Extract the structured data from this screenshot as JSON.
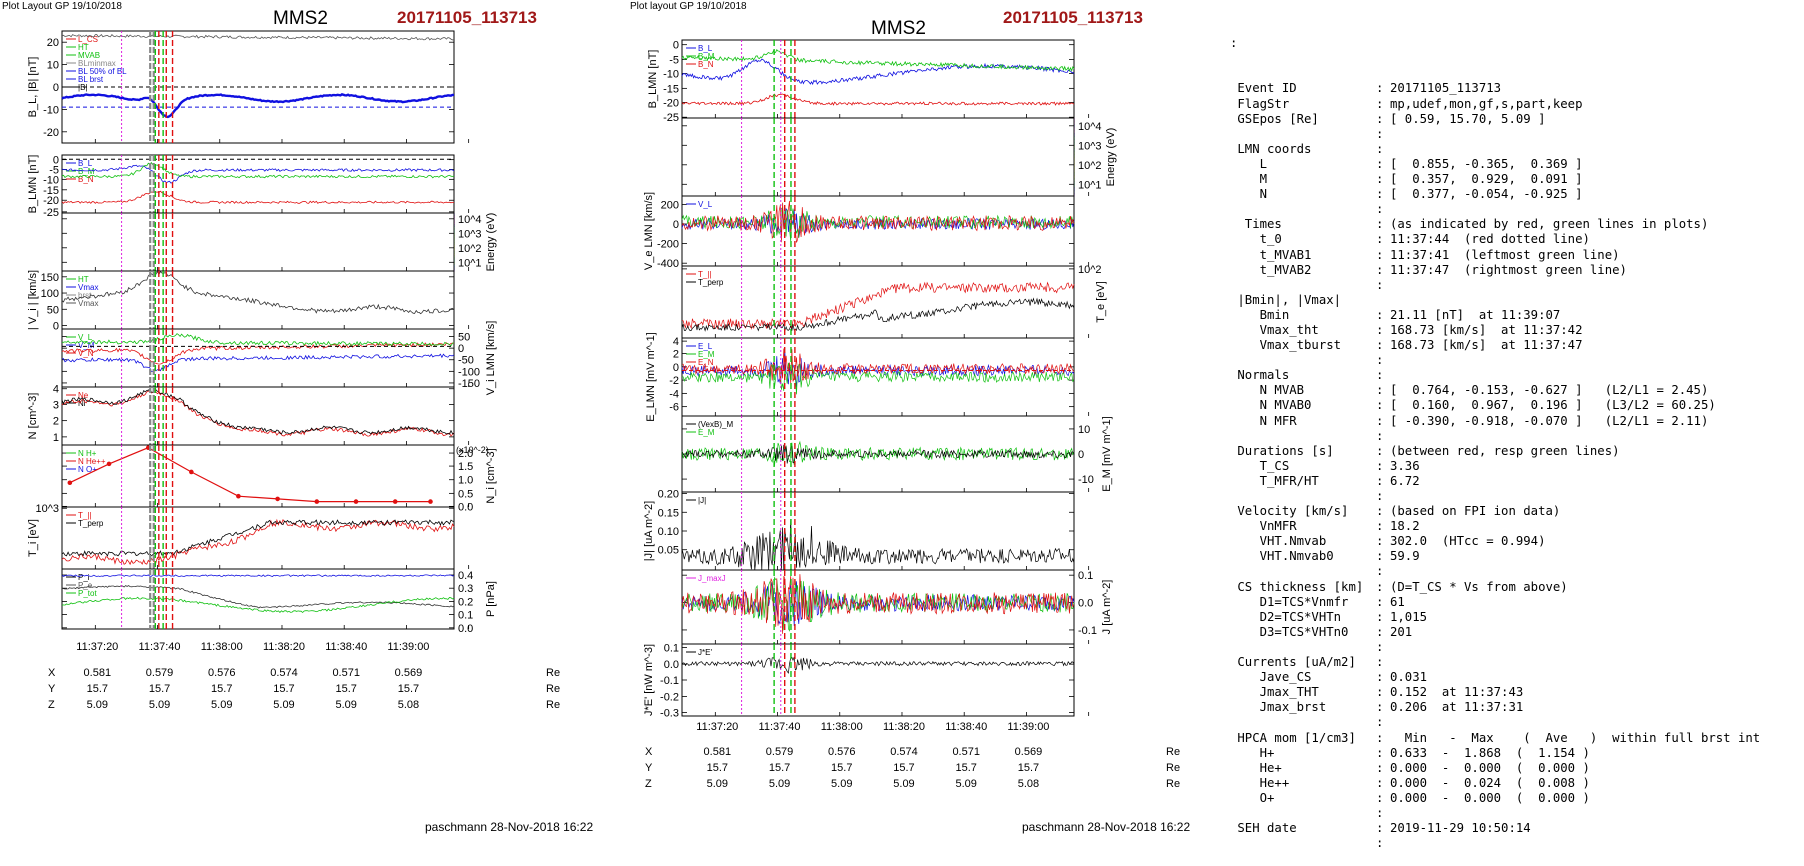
{
  "left": {
    "header": "Plot Layout GP 19/10/2018",
    "spacecraft": "MMS2",
    "event": "20171105_113713",
    "footer": "paschmann 28-Nov-2018 16:22",
    "time_ticks": [
      "11:37:20",
      "11:37:40",
      "11:38:00",
      "11:38:20",
      "11:38:40",
      "11:39:00"
    ],
    "position": {
      "rows": [
        {
          "label": "X",
          "values": [
            "0.581",
            "0.579",
            "0.576",
            "0.574",
            "0.571",
            "0.569"
          ],
          "unit": "Re"
        },
        {
          "label": "Y",
          "values": [
            "15.7",
            "15.7",
            "15.7",
            "15.7",
            "15.7",
            "15.7"
          ],
          "unit": "Re"
        },
        {
          "label": "Z",
          "values": [
            "5.09",
            "5.09",
            "5.09",
            "5.09",
            "5.09",
            "5.08"
          ],
          "unit": "Re"
        }
      ]
    }
  },
  "right": {
    "header": "Plot layout GP 19/10/2018",
    "spacecraft": "MMS2",
    "event": "20171105_113713",
    "footer": "paschmann 28-Nov-2018 16:22",
    "time_ticks": [
      "11:37:20",
      "11:37:40",
      "11:38:00",
      "11:38:20",
      "11:38:40",
      "11:39:00"
    ],
    "position": {
      "rows": [
        {
          "label": "X",
          "values": [
            "0.581",
            "0.579",
            "0.576",
            "0.574",
            "0.571",
            "0.569"
          ],
          "unit": "Re"
        },
        {
          "label": "Y",
          "values": [
            "15.7",
            "15.7",
            "15.7",
            "15.7",
            "15.7",
            "15.7"
          ],
          "unit": "Re"
        },
        {
          "label": "Z",
          "values": [
            "5.09",
            "5.09",
            "5.09",
            "5.09",
            "5.09",
            "5.08"
          ],
          "unit": "Re"
        }
      ]
    }
  },
  "colors": {
    "red": "#e01010",
    "green": "#10c010",
    "blue": "#1010e0",
    "black": "#000000",
    "magenta": "#e020e0",
    "title_red": "#a01818"
  },
  "chart_data": [
    {
      "type": "line",
      "id": "left-B",
      "ylabel": "B_L, |B| [nT]",
      "ylim": [
        -25,
        25
      ],
      "yticks": [
        "20",
        "10",
        "0",
        "-10",
        "-20"
      ],
      "legend": [
        "L_CS",
        "HT",
        "MVAB",
        "BLminmax",
        "BL 50% of BL",
        "BL brst",
        "|B|"
      ],
      "series": [
        {
          "name": "|B|",
          "values": [
            22,
            22,
            23,
            23,
            22,
            24,
            23,
            22,
            21,
            21,
            21,
            21,
            21,
            21,
            21,
            21,
            21,
            22,
            22
          ]
        },
        {
          "name": "BL",
          "values": [
            -4,
            -6,
            -5,
            -4,
            -3,
            -9,
            -6,
            -5,
            -5,
            -5,
            -5,
            -4,
            -4,
            -4,
            -4,
            -4,
            -4,
            -5,
            -5
          ]
        }
      ]
    },
    {
      "type": "line",
      "id": "left-BLMN",
      "ylabel": "B_LMN [nT]",
      "ylim": [
        -25,
        2
      ],
      "yticks": [
        "0",
        "-5",
        "-10",
        "-15",
        "-20",
        "-25"
      ],
      "legend": [
        "B_L",
        "B_M",
        "B_N"
      ]
    },
    {
      "type": "heatmap",
      "id": "left-spec",
      "ylabel": "Energy (eV)",
      "yticks": [
        "10^4",
        "10^3",
        "10^2",
        "10^1"
      ]
    },
    {
      "type": "line",
      "id": "left-Vi",
      "ylabel": "| V_i | [km/s]",
      "ylim": [
        0,
        180
      ],
      "yticks": [
        "150",
        "100",
        "50",
        "0"
      ],
      "legend": [
        "HT",
        "Vmax",
        "brst",
        "Vmax"
      ]
    },
    {
      "type": "line",
      "id": "left-ViLMN",
      "ylabel": "V_i LMN [km/s]",
      "ylim": [
        -175,
        75
      ],
      "yticks": [
        "50",
        "0",
        "-50",
        "-100",
        "-150"
      ],
      "legend": [
        "V_L",
        "V_M",
        "V_N"
      ]
    },
    {
      "type": "line",
      "id": "left-N",
      "ylabel": "N [cm^-3]",
      "ylim": [
        0.5,
        4
      ],
      "yticks": [
        "4",
        "3",
        "2",
        "1"
      ],
      "legend": [
        "Ne",
        "Ni"
      ]
    },
    {
      "type": "scatter",
      "id": "left-Nmin",
      "ylabel": "N_i [cm^-3]",
      "ylim": [
        0,
        2.3
      ],
      "yticks": [
        "2.0",
        "1.5",
        "1.0",
        "0.5",
        "0.0"
      ],
      "legend": [
        "N H+",
        "N He++",
        "N O+"
      ],
      "annotation": "(x10^-2)",
      "series": [
        {
          "name": "He++",
          "x": [
            "11:37:20",
            "11:37:30",
            "11:37:40",
            "11:37:50",
            "11:38:00",
            "11:38:10",
            "11:38:20",
            "11:38:30",
            "11:38:40",
            "11:38:50"
          ],
          "values": [
            0.9,
            1.6,
            2.2,
            1.3,
            0.4,
            0.3,
            0.2,
            0.2,
            0.2,
            0.2
          ]
        }
      ]
    },
    {
      "type": "line",
      "id": "left-Ti",
      "ylabel": "T_i [eV]",
      "yticks": [
        "10^3"
      ],
      "legend": [
        "T_||",
        "T_perp"
      ]
    },
    {
      "type": "line",
      "id": "left-P",
      "ylabel": "P [nPa]",
      "ylim": [
        0,
        0.45
      ],
      "yticks": [
        "0.4",
        "0.3",
        "0.2",
        "0.1",
        "0.0"
      ],
      "legend": [
        "P_i",
        "P_e",
        "P_tot"
      ]
    },
    {
      "type": "line",
      "id": "right-BLMN",
      "ylabel": "B_LMN [nT]",
      "ylim": [
        -25,
        2
      ],
      "yticks": [
        "0",
        "-5",
        "-10",
        "-15",
        "-20",
        "-25"
      ],
      "legend": [
        "B_L",
        "B_M",
        "B_N"
      ]
    },
    {
      "type": "heatmap",
      "id": "right-spec",
      "ylabel": "Energy (eV)",
      "yticks": [
        "10^4",
        "10^3",
        "10^2",
        "10^1"
      ]
    },
    {
      "type": "line",
      "id": "right-Ve",
      "ylabel": "V_e LMN [km/s]",
      "ylim": [
        -450,
        300
      ],
      "yticks": [
        "200",
        "0",
        "-200",
        "-400"
      ],
      "legend": [
        "V_L"
      ]
    },
    {
      "type": "line",
      "id": "right-Te",
      "ylabel": "T_e [eV]",
      "yticks": [
        "10^2"
      ],
      "legend": [
        "T_||",
        "T_perp"
      ]
    },
    {
      "type": "line",
      "id": "right-E",
      "ylabel": "E_LMN [mV m^-1]",
      "ylim": [
        -7,
        5
      ],
      "yticks": [
        "4",
        "2",
        "0",
        "-2",
        "-4",
        "-6"
      ],
      "legend": [
        "E_L",
        "E_M",
        "E_N"
      ]
    },
    {
      "type": "line",
      "id": "right-EM",
      "ylabel": "E_M [mV m^-1]",
      "ylim": [
        -15,
        15
      ],
      "yticks": [
        "10",
        "0",
        "-10"
      ],
      "legend": [
        "(VexB)_M",
        "E_M"
      ]
    },
    {
      "type": "line",
      "id": "right-J",
      "ylabel": "|J| [uA m^-2]",
      "ylim": [
        0,
        0.2
      ],
      "yticks": [
        "0.20",
        "0.15",
        "0.10",
        "0.05"
      ],
      "legend": [
        "|J|"
      ]
    },
    {
      "type": "line",
      "id": "right-JLMN",
      "ylabel": "J [uA m^-2]",
      "ylim": [
        -0.15,
        0.12
      ],
      "yticks": [
        "0.1",
        "0.0",
        "-0.1"
      ],
      "legend": [
        "J_maxJ"
      ]
    },
    {
      "type": "line",
      "id": "right-JE",
      "ylabel": "J*E' [nW m^-3]",
      "ylim": [
        -0.32,
        0.12
      ],
      "yticks": [
        "0.1",
        "0.0",
        "-0.1",
        "-0.2",
        "-0.3"
      ],
      "legend": [
        "J*E'"
      ]
    }
  ],
  "info": {
    "leading": ":",
    "lines": [
      {
        "k": "Event ID",
        "s": ":",
        "v": "20171105_113713"
      },
      {
        "k": "FlagStr",
        "s": ":",
        "v": "mp,udef,mon,gf,s,part,keep"
      },
      {
        "k": "GSEpos [Re]",
        "s": ":",
        "v": "[ 0.59, 15.70, 5.09 ]"
      },
      {
        "k": "",
        "s": ":",
        "v": ""
      },
      {
        "k": "LMN coords",
        "s": ":",
        "v": ""
      },
      {
        "k": "   L",
        "s": ":",
        "v": "[  0.855, -0.365,  0.369 ]"
      },
      {
        "k": "   M",
        "s": ":",
        "v": "[  0.357,  0.929,  0.091 ]"
      },
      {
        "k": "   N",
        "s": ":",
        "v": "[  0.377, -0.054, -0.925 ]"
      },
      {
        "k": "",
        "s": ":",
        "v": ""
      },
      {
        "k": " Times",
        "s": ":",
        "v": "(as indicated by red, green lines in plots)"
      },
      {
        "k": "   t_0",
        "s": ":",
        "v": "11:37:44  (red dotted line)"
      },
      {
        "k": "   t_MVAB1",
        "s": ":",
        "v": "11:37:41  (leftmost green line)"
      },
      {
        "k": "   t_MVAB2",
        "s": ":",
        "v": "11:37:47  (rightmost green line)"
      },
      {
        "k": "",
        "s": ":",
        "v": ""
      },
      {
        "k": "|Bmin|, |Vmax|",
        "s": "",
        "v": ""
      },
      {
        "k": "   Bmin",
        "s": ":",
        "v": "21.11 [nT]  at 11:39:07"
      },
      {
        "k": "   Vmax_tht",
        "s": ":",
        "v": "168.73 [km/s]  at 11:37:42"
      },
      {
        "k": "   Vmax_tburst",
        "s": ":",
        "v": "168.73 [km/s]  at 11:37:47"
      },
      {
        "k": "",
        "s": ":",
        "v": ""
      },
      {
        "k": "Normals",
        "s": ":",
        "v": ""
      },
      {
        "k": "   N MVAB",
        "s": ":",
        "v": "[  0.764, -0.153, -0.627 ]   (L2/L1 = 2.45)"
      },
      {
        "k": "   N MVAB0",
        "s": ":",
        "v": "[  0.160,  0.967,  0.196 ]   (L3/L2 = 60.25)"
      },
      {
        "k": "   N MFR",
        "s": ":",
        "v": "[ -0.390, -0.918, -0.070 ]   (L2/L1 = 2.11)"
      },
      {
        "k": "",
        "s": ":",
        "v": ""
      },
      {
        "k": "Durations [s]",
        "s": ":",
        "v": "(between red, resp green lines)"
      },
      {
        "k": "   T_CS",
        "s": ":",
        "v": "3.36"
      },
      {
        "k": "   T_MFR/HT",
        "s": ":",
        "v": "6.72"
      },
      {
        "k": "",
        "s": ":",
        "v": ""
      },
      {
        "k": "Velocity [km/s]",
        "s": ":",
        "v": "(based on FPI ion data)"
      },
      {
        "k": "   VnMFR",
        "s": ":",
        "v": "18.2"
      },
      {
        "k": "   VHT.Nmvab",
        "s": ":",
        "v": "302.0  (HTcc = 0.994)"
      },
      {
        "k": "   VHT.Nmvab0",
        "s": ":",
        "v": "59.9"
      },
      {
        "k": "",
        "s": ":",
        "v": ""
      },
      {
        "k": "CS thickness [km]",
        "s": ":",
        "v": "(D=T_CS * Vs from above)"
      },
      {
        "k": "   D1=TCS*Vnmfr",
        "s": ":",
        "v": "61"
      },
      {
        "k": "   D2=TCS*VHTn",
        "s": ":",
        "v": "1,015"
      },
      {
        "k": "   D3=TCS*VHTn0",
        "s": ":",
        "v": "201"
      },
      {
        "k": "",
        "s": ":",
        "v": ""
      },
      {
        "k": "Currents [uA/m2]",
        "s": ":",
        "v": ""
      },
      {
        "k": "   Jave_CS",
        "s": ":",
        "v": "0.031"
      },
      {
        "k": "   Jmax_THT",
        "s": ":",
        "v": "0.152  at 11:37:43"
      },
      {
        "k": "   Jmax_brst",
        "s": ":",
        "v": "0.206  at 11:37:31"
      },
      {
        "k": "",
        "s": ":",
        "v": ""
      },
      {
        "k": "HPCA mom [1/cm3]",
        "s": ":",
        "v": "  Min   -  Max    (  Ave   )  within full brst int"
      },
      {
        "k": "   H+",
        "s": ":",
        "v": "0.633  -  1.868  (  1.154 )"
      },
      {
        "k": "   He+",
        "s": ":",
        "v": "0.000  -  0.000  (  0.000 )"
      },
      {
        "k": "   He++",
        "s": ":",
        "v": "0.000  -  0.024  (  0.008 )"
      },
      {
        "k": "   O+",
        "s": ":",
        "v": "0.000  -  0.000  (  0.000 )"
      },
      {
        "k": "",
        "s": ":",
        "v": ""
      },
      {
        "k": "SEH date",
        "s": ":",
        "v": "2019-11-29 10:50:14"
      },
      {
        "k": "",
        "s": ":",
        "v": ""
      }
    ]
  }
}
